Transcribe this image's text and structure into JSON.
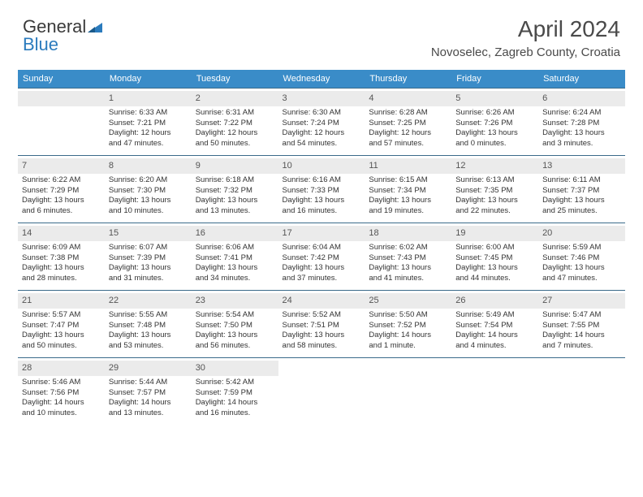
{
  "logo": {
    "part1": "General",
    "part2": "Blue"
  },
  "header": {
    "month_title": "April 2024",
    "location": "Novoselec, Zagreb County, Croatia"
  },
  "colors": {
    "header_bg": "#3a8cc8",
    "header_text": "#ffffff",
    "row_border": "#3a6a8a",
    "daynum_bg": "#ebebeb",
    "body_text": "#333333",
    "title_text": "#4a4a4a"
  },
  "day_names": [
    "Sunday",
    "Monday",
    "Tuesday",
    "Wednesday",
    "Thursday",
    "Friday",
    "Saturday"
  ],
  "weeks": [
    [
      null,
      {
        "n": "1",
        "sr": "Sunrise: 6:33 AM",
        "ss": "Sunset: 7:21 PM",
        "d1": "Daylight: 12 hours",
        "d2": "and 47 minutes."
      },
      {
        "n": "2",
        "sr": "Sunrise: 6:31 AM",
        "ss": "Sunset: 7:22 PM",
        "d1": "Daylight: 12 hours",
        "d2": "and 50 minutes."
      },
      {
        "n": "3",
        "sr": "Sunrise: 6:30 AM",
        "ss": "Sunset: 7:24 PM",
        "d1": "Daylight: 12 hours",
        "d2": "and 54 minutes."
      },
      {
        "n": "4",
        "sr": "Sunrise: 6:28 AM",
        "ss": "Sunset: 7:25 PM",
        "d1": "Daylight: 12 hours",
        "d2": "and 57 minutes."
      },
      {
        "n": "5",
        "sr": "Sunrise: 6:26 AM",
        "ss": "Sunset: 7:26 PM",
        "d1": "Daylight: 13 hours",
        "d2": "and 0 minutes."
      },
      {
        "n": "6",
        "sr": "Sunrise: 6:24 AM",
        "ss": "Sunset: 7:28 PM",
        "d1": "Daylight: 13 hours",
        "d2": "and 3 minutes."
      }
    ],
    [
      {
        "n": "7",
        "sr": "Sunrise: 6:22 AM",
        "ss": "Sunset: 7:29 PM",
        "d1": "Daylight: 13 hours",
        "d2": "and 6 minutes."
      },
      {
        "n": "8",
        "sr": "Sunrise: 6:20 AM",
        "ss": "Sunset: 7:30 PM",
        "d1": "Daylight: 13 hours",
        "d2": "and 10 minutes."
      },
      {
        "n": "9",
        "sr": "Sunrise: 6:18 AM",
        "ss": "Sunset: 7:32 PM",
        "d1": "Daylight: 13 hours",
        "d2": "and 13 minutes."
      },
      {
        "n": "10",
        "sr": "Sunrise: 6:16 AM",
        "ss": "Sunset: 7:33 PM",
        "d1": "Daylight: 13 hours",
        "d2": "and 16 minutes."
      },
      {
        "n": "11",
        "sr": "Sunrise: 6:15 AM",
        "ss": "Sunset: 7:34 PM",
        "d1": "Daylight: 13 hours",
        "d2": "and 19 minutes."
      },
      {
        "n": "12",
        "sr": "Sunrise: 6:13 AM",
        "ss": "Sunset: 7:35 PM",
        "d1": "Daylight: 13 hours",
        "d2": "and 22 minutes."
      },
      {
        "n": "13",
        "sr": "Sunrise: 6:11 AM",
        "ss": "Sunset: 7:37 PM",
        "d1": "Daylight: 13 hours",
        "d2": "and 25 minutes."
      }
    ],
    [
      {
        "n": "14",
        "sr": "Sunrise: 6:09 AM",
        "ss": "Sunset: 7:38 PM",
        "d1": "Daylight: 13 hours",
        "d2": "and 28 minutes."
      },
      {
        "n": "15",
        "sr": "Sunrise: 6:07 AM",
        "ss": "Sunset: 7:39 PM",
        "d1": "Daylight: 13 hours",
        "d2": "and 31 minutes."
      },
      {
        "n": "16",
        "sr": "Sunrise: 6:06 AM",
        "ss": "Sunset: 7:41 PM",
        "d1": "Daylight: 13 hours",
        "d2": "and 34 minutes."
      },
      {
        "n": "17",
        "sr": "Sunrise: 6:04 AM",
        "ss": "Sunset: 7:42 PM",
        "d1": "Daylight: 13 hours",
        "d2": "and 37 minutes."
      },
      {
        "n": "18",
        "sr": "Sunrise: 6:02 AM",
        "ss": "Sunset: 7:43 PM",
        "d1": "Daylight: 13 hours",
        "d2": "and 41 minutes."
      },
      {
        "n": "19",
        "sr": "Sunrise: 6:00 AM",
        "ss": "Sunset: 7:45 PM",
        "d1": "Daylight: 13 hours",
        "d2": "and 44 minutes."
      },
      {
        "n": "20",
        "sr": "Sunrise: 5:59 AM",
        "ss": "Sunset: 7:46 PM",
        "d1": "Daylight: 13 hours",
        "d2": "and 47 minutes."
      }
    ],
    [
      {
        "n": "21",
        "sr": "Sunrise: 5:57 AM",
        "ss": "Sunset: 7:47 PM",
        "d1": "Daylight: 13 hours",
        "d2": "and 50 minutes."
      },
      {
        "n": "22",
        "sr": "Sunrise: 5:55 AM",
        "ss": "Sunset: 7:48 PM",
        "d1": "Daylight: 13 hours",
        "d2": "and 53 minutes."
      },
      {
        "n": "23",
        "sr": "Sunrise: 5:54 AM",
        "ss": "Sunset: 7:50 PM",
        "d1": "Daylight: 13 hours",
        "d2": "and 56 minutes."
      },
      {
        "n": "24",
        "sr": "Sunrise: 5:52 AM",
        "ss": "Sunset: 7:51 PM",
        "d1": "Daylight: 13 hours",
        "d2": "and 58 minutes."
      },
      {
        "n": "25",
        "sr": "Sunrise: 5:50 AM",
        "ss": "Sunset: 7:52 PM",
        "d1": "Daylight: 14 hours",
        "d2": "and 1 minute."
      },
      {
        "n": "26",
        "sr": "Sunrise: 5:49 AM",
        "ss": "Sunset: 7:54 PM",
        "d1": "Daylight: 14 hours",
        "d2": "and 4 minutes."
      },
      {
        "n": "27",
        "sr": "Sunrise: 5:47 AM",
        "ss": "Sunset: 7:55 PM",
        "d1": "Daylight: 14 hours",
        "d2": "and 7 minutes."
      }
    ],
    [
      {
        "n": "28",
        "sr": "Sunrise: 5:46 AM",
        "ss": "Sunset: 7:56 PM",
        "d1": "Daylight: 14 hours",
        "d2": "and 10 minutes."
      },
      {
        "n": "29",
        "sr": "Sunrise: 5:44 AM",
        "ss": "Sunset: 7:57 PM",
        "d1": "Daylight: 14 hours",
        "d2": "and 13 minutes."
      },
      {
        "n": "30",
        "sr": "Sunrise: 5:42 AM",
        "ss": "Sunset: 7:59 PM",
        "d1": "Daylight: 14 hours",
        "d2": "and 16 minutes."
      },
      null,
      null,
      null,
      null
    ]
  ]
}
